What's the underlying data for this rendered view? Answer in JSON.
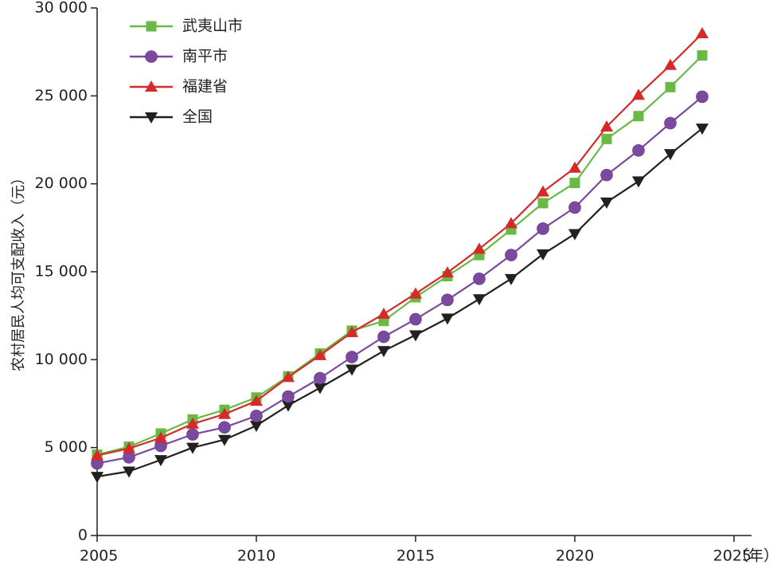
{
  "chart_data": {
    "type": "line",
    "title": "",
    "xlabel": "（年）",
    "ylabel": "农村居民人均可支配收入（元）",
    "xlim": [
      2005,
      2026
    ],
    "ylim": [
      0,
      30000
    ],
    "x_ticks": [
      2005,
      2010,
      2015,
      2020,
      2025
    ],
    "x_tick_labels": [
      "2005",
      "2010",
      "2015",
      "2020",
      "2025"
    ],
    "y_ticks": [
      0,
      5000,
      10000,
      15000,
      20000,
      25000,
      30000
    ],
    "y_tick_labels": [
      "0",
      "5 000",
      "10 000",
      "15 000",
      "20 000",
      "25 000",
      "30 000"
    ],
    "grid": false,
    "legend_position": "top-left",
    "x": [
      2005,
      2006,
      2007,
      2008,
      2009,
      2010,
      2011,
      2012,
      2013,
      2014,
      2015,
      2016,
      2017,
      2018,
      2019,
      2020,
      2021,
      2022,
      2023,
      2024
    ],
    "series": [
      {
        "name": "武夷山市",
        "color": "#6ab945",
        "marker": "square",
        "values": [
          4600,
          5050,
          5800,
          6600,
          7150,
          7850,
          9050,
          10350,
          11650,
          12200,
          13550,
          14750,
          15950,
          17400,
          18900,
          20050,
          22550,
          23850,
          25500,
          27300
        ]
      },
      {
        "name": "南平市",
        "color": "#7b4a9e",
        "marker": "circle",
        "values": [
          4100,
          4450,
          5100,
          5750,
          6150,
          6800,
          7900,
          8950,
          10150,
          11300,
          12300,
          13400,
          14600,
          15950,
          17450,
          18650,
          20500,
          21900,
          23450,
          24950
        ]
      },
      {
        "name": "福建省",
        "color": "#d42a2a",
        "marker": "triangle-up",
        "values": [
          4550,
          4950,
          5550,
          6350,
          6900,
          7650,
          9000,
          10250,
          11550,
          12600,
          13750,
          14950,
          16300,
          17750,
          19550,
          20900,
          23250,
          25050,
          26750,
          28550
        ]
      },
      {
        "name": "全国",
        "color": "#231f20",
        "marker": "triangle-down",
        "values": [
          3350,
          3650,
          4300,
          5000,
          5450,
          6250,
          7400,
          8400,
          9450,
          10500,
          11400,
          12350,
          13450,
          14600,
          16000,
          17150,
          18950,
          20150,
          21700,
          23150
        ]
      }
    ]
  }
}
